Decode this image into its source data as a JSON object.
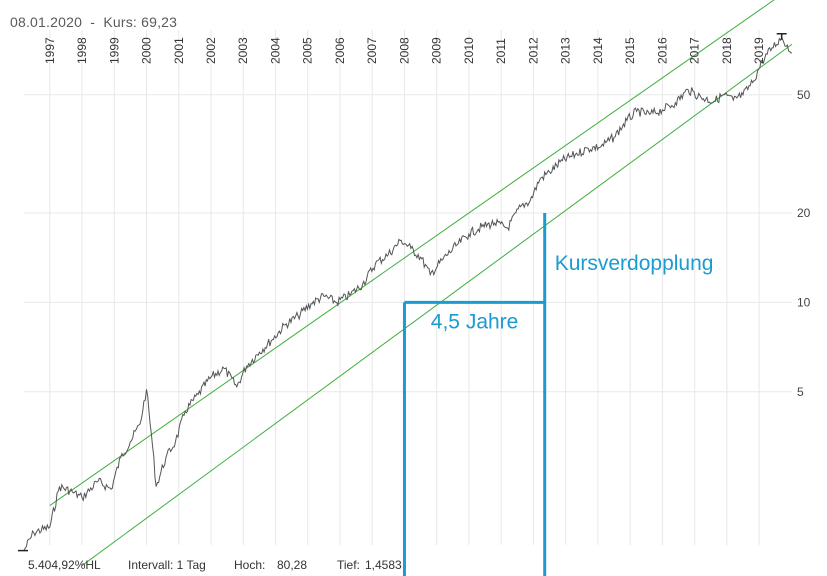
{
  "header": {
    "date": "08.01.2020",
    "separator": "-",
    "price_label": "Kurs:",
    "price_value": "69,23"
  },
  "footer": {
    "hl_ratio": "5.404,92%HL",
    "interval": "Intervall: 1 Tag",
    "high_label": "Hoch:",
    "high_value": "80,28",
    "low_label": "Tief:",
    "low_value": "1,4583"
  },
  "colors": {
    "price_line": "#555555",
    "channel": "#3fae3f",
    "annotation": "#1a9bd1",
    "grid": "#e8e8e8"
  },
  "chart_data": {
    "type": "line",
    "title": "",
    "xlabel": "",
    "ylabel": "",
    "y_scale": "log",
    "x_range": [
      1996.2,
      2020.02
    ],
    "ylim": [
      1.4583,
      80.28
    ],
    "x_tick_labels": [
      "1997",
      "1998",
      "1999",
      "2000",
      "2001",
      "2002",
      "2003",
      "2004",
      "2005",
      "2006",
      "2007",
      "2008",
      "2009",
      "2010",
      "2011",
      "2012",
      "2013",
      "2014",
      "2015",
      "2016",
      "2017",
      "2018",
      "2019"
    ],
    "y_tick_labels": [
      "5",
      "10",
      "20",
      "50"
    ],
    "grid": true,
    "series": [
      {
        "x": [
          1996.2,
          1996.5,
          1997.0,
          1997.3,
          1997.7,
          1998.0,
          1998.5,
          1998.9,
          1999.2,
          1999.5,
          1999.8,
          2000.0,
          2000.15,
          2000.3,
          2000.6,
          2000.9,
          2001.2,
          2001.6,
          2002.0,
          2002.4,
          2002.8,
          2003.1,
          2003.5,
          2003.9,
          2004.3,
          2004.7,
          2005.1,
          2005.5,
          2005.9,
          2006.3,
          2006.7,
          2007.1,
          2007.5,
          2007.9,
          2008.2,
          2008.5,
          2008.8,
          2009.2,
          2009.6,
          2010.0,
          2010.4,
          2010.8,
          2011.2,
          2011.6,
          2011.9,
          2012.2,
          2012.5,
          2012.9,
          2013.3,
          2013.7,
          2014.1,
          2014.5,
          2014.9,
          2015.2,
          2015.6,
          2016.0,
          2016.4,
          2016.8,
          2017.2,
          2017.6,
          2017.9,
          2018.2,
          2018.5,
          2018.8,
          2019.1,
          2019.4,
          2019.7,
          2020.02
        ],
        "values": [
          1.46,
          1.68,
          1.75,
          2.4,
          2.3,
          2.2,
          2.5,
          2.35,
          3.0,
          3.4,
          3.9,
          5.1,
          3.6,
          2.4,
          3.0,
          3.4,
          4.3,
          4.9,
          5.6,
          6.0,
          5.2,
          6.1,
          6.8,
          7.5,
          8.4,
          9.0,
          9.9,
          10.5,
          10.0,
          10.6,
          11.5,
          13.5,
          14.5,
          16.2,
          15.2,
          14.2,
          12.4,
          14.0,
          15.5,
          17.0,
          18.0,
          18.5,
          17.8,
          21.0,
          22.0,
          26.0,
          27.5,
          30.0,
          31.5,
          33.0,
          33.5,
          36.0,
          41.0,
          44.0,
          43.0,
          44.5,
          47.0,
          52.0,
          49.0,
          47.5,
          50.0,
          48.0,
          50.0,
          55.0,
          65.0,
          72.0,
          78.0,
          69.23
        ]
      }
    ],
    "channel_lines": [
      {
        "x": [
          1997.0,
          2020.02
        ],
        "values": [
          2.07,
          115.0
        ]
      },
      {
        "x": [
          1998.0,
          2020.02
        ],
        "values": [
          1.3,
          74.0
        ]
      }
    ],
    "annotations": [
      {
        "text": "Kursverdopplung",
        "from_value": 10,
        "to_value": 20
      },
      {
        "text": "4,5 Jahre"
      }
    ]
  }
}
